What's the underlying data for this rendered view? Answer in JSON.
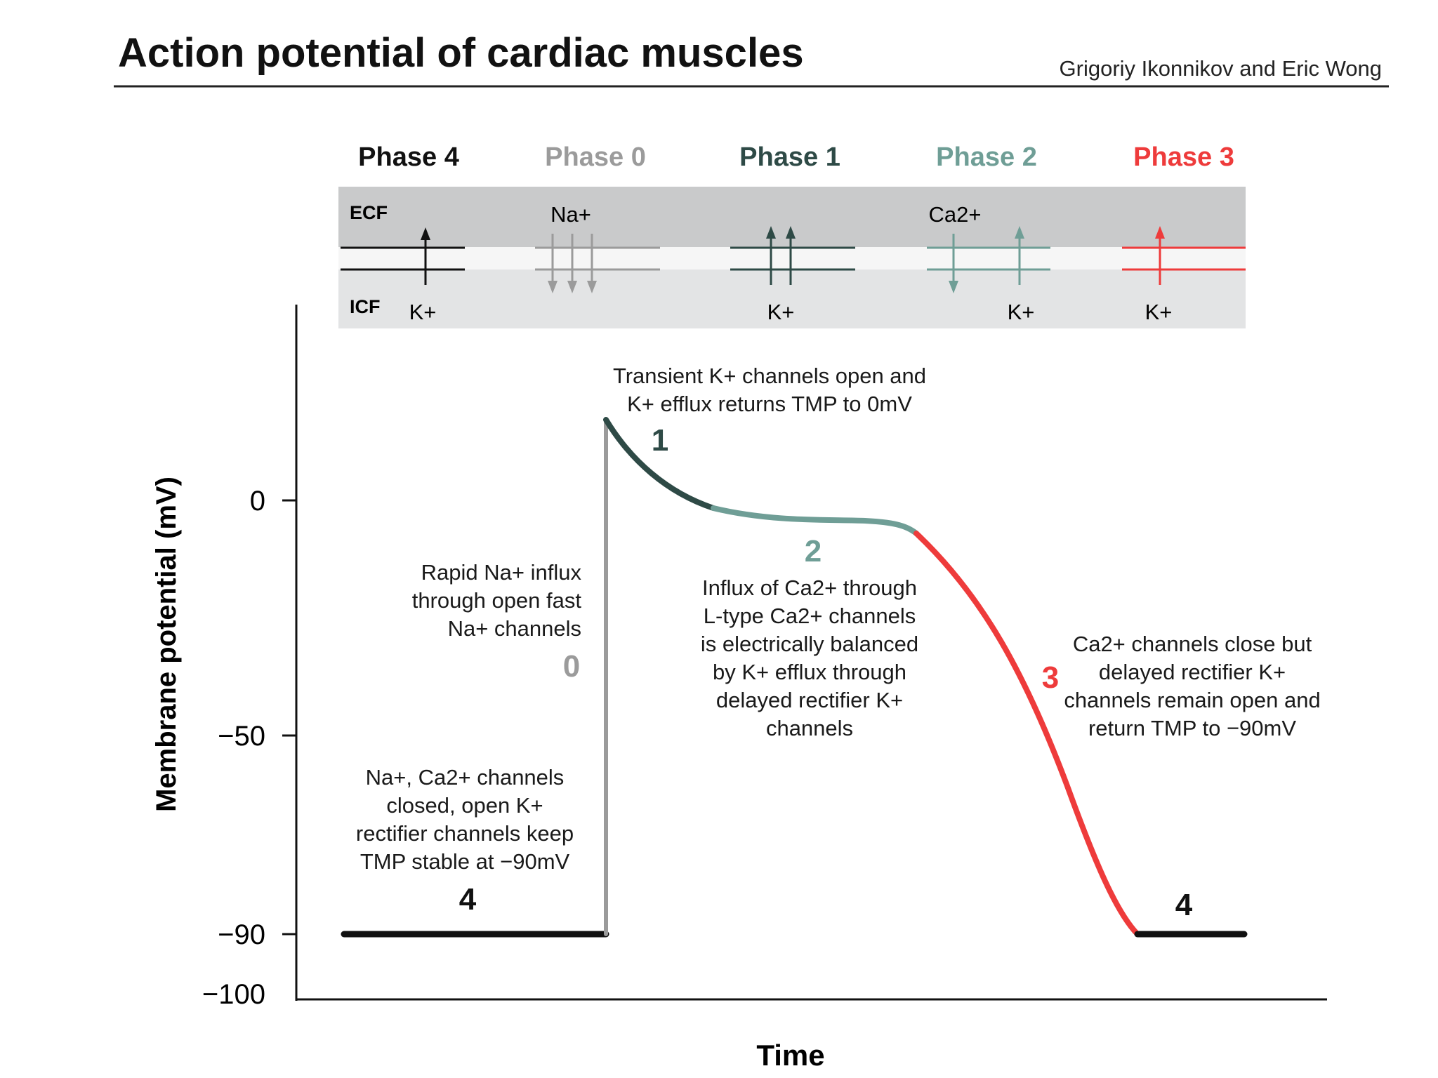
{
  "header": {
    "title": "Action potential of cardiac muscles",
    "authors": "Grigoriy Ikonnikov and Eric Wong"
  },
  "colors": {
    "phase4": "#111111",
    "phase0": "#9b9b9b",
    "phase1": "#2e4a46",
    "phase2": "#6f9e96",
    "phase3": "#ee3b3b",
    "band_dark": "#c9cacb",
    "band_light": "#e3e4e5"
  },
  "membrane": {
    "ecf_label": "ECF",
    "icf_label": "ICF",
    "phases": [
      {
        "label": "Phase 4",
        "color": "#111111",
        "ion_top": "",
        "ion_bottom": "K+"
      },
      {
        "label": "Phase 0",
        "color": "#9b9b9b",
        "ion_top": "Na+",
        "ion_bottom": ""
      },
      {
        "label": "Phase 1",
        "color": "#2e4a46",
        "ion_top": "",
        "ion_bottom": "K+"
      },
      {
        "label": "Phase 2",
        "color": "#6f9e96",
        "ion_top": "Ca2+",
        "ion_bottom": "K+"
      },
      {
        "label": "Phase 3",
        "color": "#ee3b3b",
        "ion_top": "",
        "ion_bottom": "K+"
      }
    ]
  },
  "axes": {
    "ylabel": "Membrane potential (mV)",
    "xlabel": "Time",
    "yticks": [
      "0",
      "−50",
      "−90",
      "−100"
    ]
  },
  "curve_labels": {
    "phase4_start": "4",
    "phase0": "0",
    "phase1": "1",
    "phase2": "2",
    "phase3": "3",
    "phase4_end": "4"
  },
  "annotations": {
    "phase1": [
      "Transient K+ channels open and",
      "K+ efflux returns TMP to 0mV"
    ],
    "phase0": [
      "Rapid Na+ influx",
      "through open fast",
      "Na+ channels"
    ],
    "phase2": [
      "Influx of Ca2+ through",
      "L-type Ca2+ channels",
      "is electrically balanced",
      "by K+ efflux through",
      "delayed rectifier K+",
      "channels"
    ],
    "phase3": [
      "Ca2+ channels close but",
      "delayed rectifier K+",
      "channels remain open and",
      "return TMP to −90mV"
    ],
    "phase4": [
      "Na+, Ca2+ channels",
      "closed, open K+",
      "rectifier channels keep",
      "TMP stable at −90mV"
    ]
  }
}
